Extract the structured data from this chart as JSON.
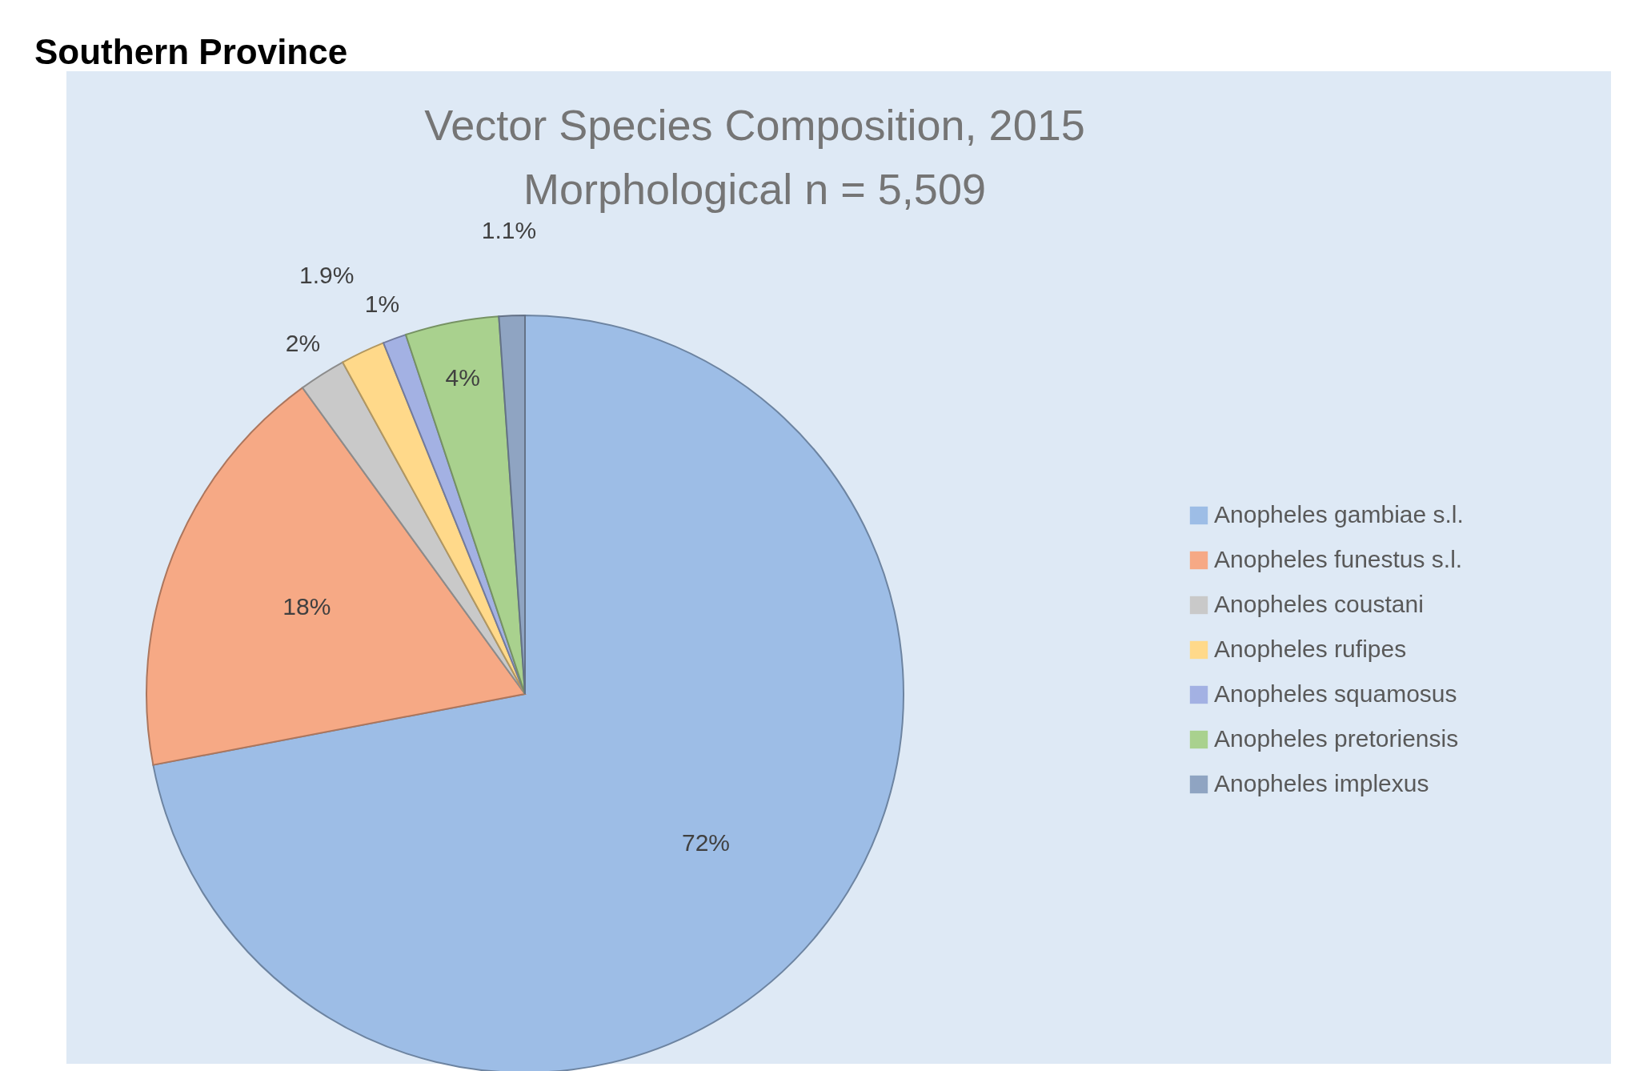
{
  "chart_data": {
    "type": "pie",
    "title": "Vector Species Composition, 2015",
    "subtitle": "Morphological n = 5,509",
    "annotations": [
      "Southern Province"
    ],
    "categories": [
      "Anopheles gambiae s.l.",
      "Anopheles funestus s.l.",
      "Anopheles coustani",
      "Anopheles rufipes",
      "Anopheles squamosus",
      "Anopheles pretoriensis",
      "Anopheles implexus"
    ],
    "values": [
      72,
      18,
      2,
      1.9,
      1,
      4,
      1.1
    ],
    "value_labels": [
      "72%",
      "18%",
      "2%",
      "1.9%",
      "1%",
      "4%",
      "1.1%"
    ],
    "colors": [
      "#9dbde6",
      "#f6a985",
      "#c9c9c9",
      "#ffd98a",
      "#a3b1e3",
      "#a9d18e",
      "#8fa4c2"
    ],
    "legend": "right"
  }
}
